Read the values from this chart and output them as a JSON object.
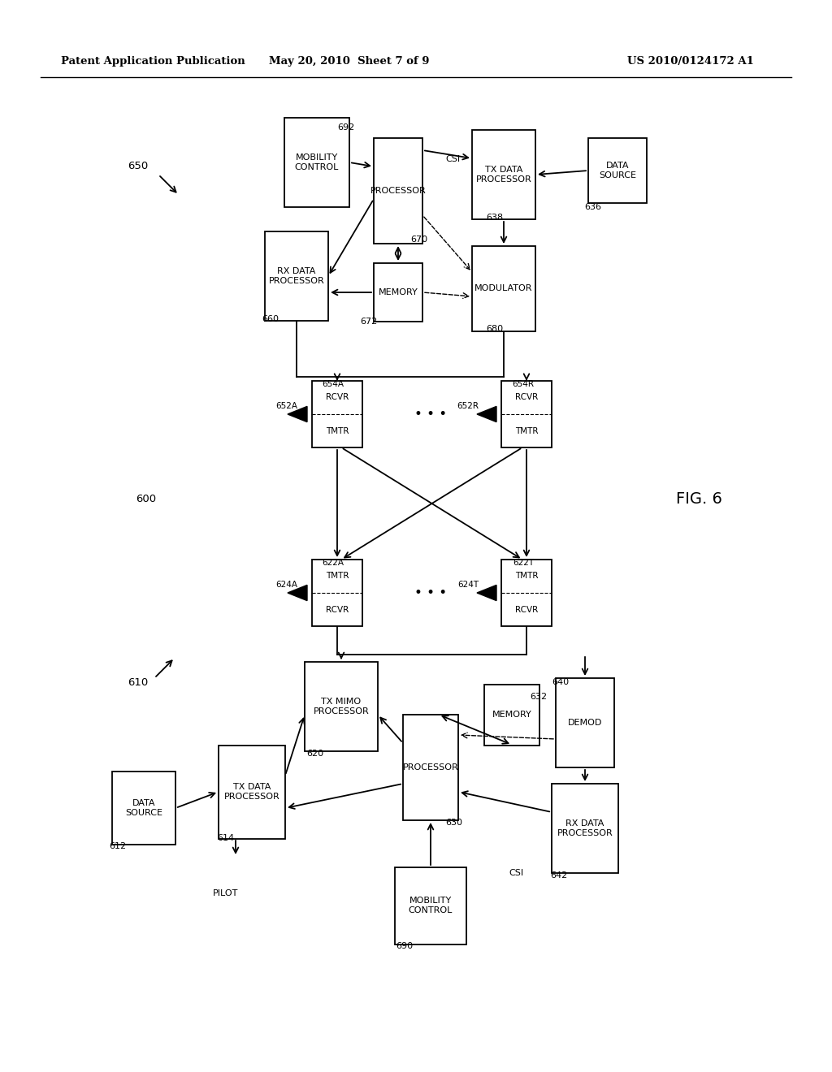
{
  "bg_color": "#ffffff",
  "header_left": "Patent Application Publication",
  "header_mid": "May 20, 2010  Sheet 7 of 9",
  "header_right": "US 2010/0124172 A1",
  "fig_label": "FIG. 6"
}
